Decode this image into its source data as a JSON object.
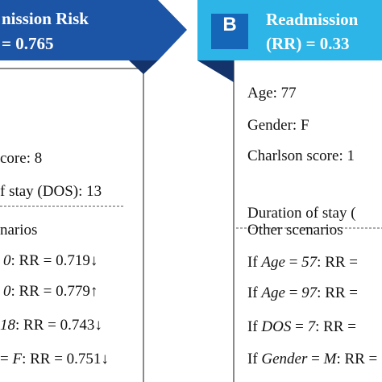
{
  "panel_a": {
    "banner": {
      "line1": "nission Risk",
      "line2": "= 0.765"
    },
    "lines": [
      "core: 8",
      "f stay (DOS): 13"
    ],
    "scenarios_title": "narios",
    "scenarios": [
      [
        "0",
        ": RR = 0.719↓"
      ],
      [
        "0",
        ": RR = 0.779↑"
      ],
      [
        "18",
        ": RR = 0.743↓"
      ],
      [
        "= ",
        "F",
        ": RR = 0.751↓"
      ]
    ]
  },
  "panel_b": {
    "badge": "B",
    "banner": {
      "line1": "Readmission",
      "line2": "(RR) = 0.33"
    },
    "lines": [
      "Age: 77",
      "Gender: F",
      "Charlson score: 1",
      "Duration of stay ("
    ],
    "scenarios_title": "Other scenarios",
    "scenarios": [
      [
        "If ",
        "Age",
        " = ",
        "57",
        ": RR ="
      ],
      [
        "If ",
        "Age",
        " = ",
        "97",
        ": RR ="
      ],
      [
        "If ",
        "DOS",
        " = ",
        "7",
        ": RR ="
      ],
      [
        "If ",
        "Gender",
        " = ",
        "M",
        ": RR ="
      ]
    ]
  }
}
